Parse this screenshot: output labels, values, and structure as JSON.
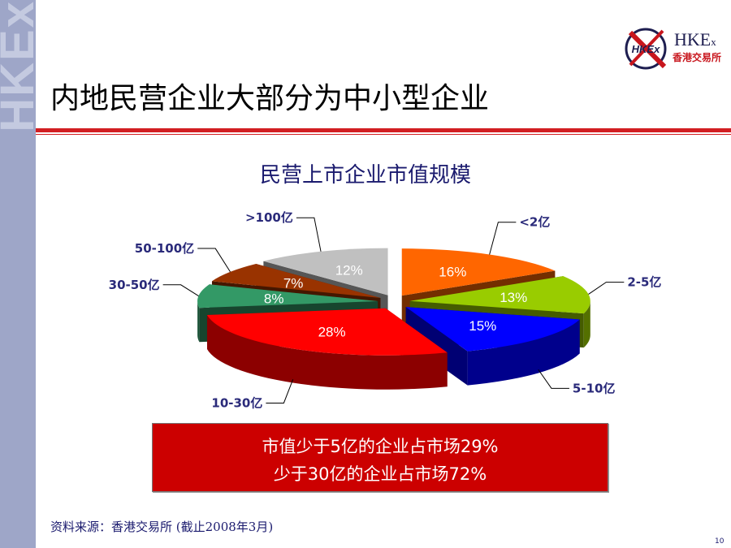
{
  "side_text": "HKEx",
  "logo": {
    "text": "HKE",
    "sub": "x",
    "chinese": "香港交易所",
    "circle_text": "HKEx"
  },
  "page_title": "内地民营企业大部分为中小型企业",
  "chart_data": {
    "type": "pie",
    "title": "民营上市企业市值规模",
    "three_d": true,
    "exploded": true,
    "slices": [
      {
        "label": "<2亿",
        "value": 16,
        "value_label": "16%",
        "color": "#ff6600"
      },
      {
        "label": "2-5亿",
        "value": 13,
        "value_label": "13%",
        "color": "#99cc00"
      },
      {
        "label": "5-10亿",
        "value": 15,
        "value_label": "15%",
        "color": "#0000ff"
      },
      {
        "label": "10-30亿",
        "value": 28,
        "value_label": "28%",
        "color": "#ff0000"
      },
      {
        "label": "30-50亿",
        "value": 8,
        "value_label": "8%",
        "color": "#339966"
      },
      {
        "label": "50-100亿",
        "value": 7,
        "value_label": "7%",
        "color": "#993300"
      },
      {
        "label": ">100亿",
        "value": 12,
        "value_label": "12%",
        "color": "#c0c0c0"
      }
    ]
  },
  "summary": {
    "line1": "市值少于5亿的企业占市场29%",
    "line2": "少于30亿的企业占市场72%"
  },
  "source": "资料来源：香港交易所 (截止2008年3月)",
  "page_number": "10"
}
